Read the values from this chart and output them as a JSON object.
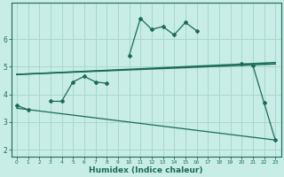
{
  "xlabel": "Humidex (Indice chaleur)",
  "background_color": "#c8ece6",
  "grid_color": "#a8d8cc",
  "line_color": "#1a6b5a",
  "x_values": [
    0,
    1,
    2,
    3,
    4,
    5,
    6,
    7,
    8,
    9,
    10,
    11,
    12,
    13,
    14,
    15,
    16,
    17,
    18,
    19,
    20,
    21,
    22,
    23
  ],
  "series1": [
    3.6,
    3.45,
    null,
    3.75,
    3.75,
    4.45,
    4.65,
    4.45,
    4.4,
    null,
    5.4,
    6.75,
    6.35,
    6.45,
    6.15,
    6.6,
    6.3,
    null,
    null,
    null,
    5.1,
    5.05,
    3.7,
    2.35
  ],
  "line1_x": [
    0,
    23
  ],
  "line1_y": [
    4.72,
    5.15
  ],
  "line2_x": [
    0,
    23
  ],
  "line2_y": [
    4.72,
    5.1
  ],
  "line3_x": [
    0,
    23
  ],
  "line3_y": [
    3.5,
    2.35
  ],
  "ylim": [
    1.75,
    7.3
  ],
  "xlim": [
    -0.5,
    23.5
  ],
  "yticks": [
    2,
    3,
    4,
    5,
    6
  ],
  "xticks": [
    0,
    1,
    2,
    3,
    4,
    5,
    6,
    7,
    8,
    9,
    10,
    11,
    12,
    13,
    14,
    15,
    16,
    17,
    18,
    19,
    20,
    21,
    22,
    23
  ]
}
